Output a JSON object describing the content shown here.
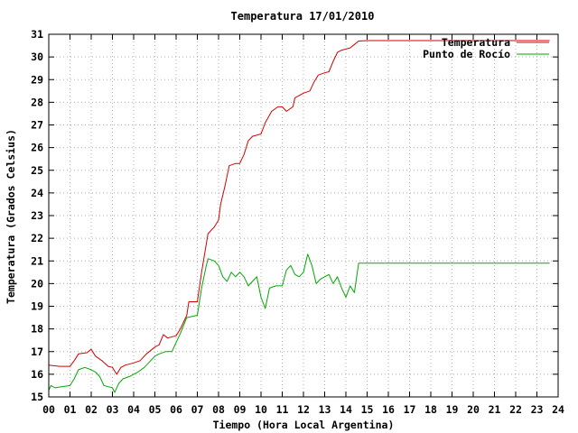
{
  "chart_data": {
    "type": "line",
    "title": "Temperatura 17/01/2010",
    "xlabel": "Tiempo (Hora Local Argentina)",
    "ylabel": "Temperatura (Grados Celsius)",
    "xlim": [
      0,
      24
    ],
    "ylim": [
      15,
      31
    ],
    "x_ticks": [
      "00",
      "01",
      "02",
      "03",
      "04",
      "05",
      "06",
      "07",
      "08",
      "09",
      "10",
      "11",
      "12",
      "13",
      "14",
      "15",
      "16",
      "17",
      "18",
      "19",
      "20",
      "21",
      "22",
      "23",
      "24"
    ],
    "y_ticks": [
      "15",
      "16",
      "17",
      "18",
      "19",
      "20",
      "21",
      "22",
      "23",
      "24",
      "25",
      "26",
      "27",
      "28",
      "29",
      "30",
      "31"
    ],
    "grid": true,
    "legend_position": "top-right",
    "series": [
      {
        "name": "Temperatura",
        "color": "#d40000",
        "points": [
          [
            0.0,
            16.4
          ],
          [
            0.5,
            16.35
          ],
          [
            1.0,
            16.35
          ],
          [
            1.2,
            16.6
          ],
          [
            1.4,
            16.9
          ],
          [
            1.8,
            16.95
          ],
          [
            2.0,
            17.1
          ],
          [
            2.2,
            16.8
          ],
          [
            2.5,
            16.6
          ],
          [
            2.8,
            16.35
          ],
          [
            3.0,
            16.3
          ],
          [
            3.2,
            16.0
          ],
          [
            3.4,
            16.3
          ],
          [
            3.6,
            16.4
          ],
          [
            4.0,
            16.5
          ],
          [
            4.3,
            16.6
          ],
          [
            4.6,
            16.9
          ],
          [
            5.0,
            17.2
          ],
          [
            5.2,
            17.3
          ],
          [
            5.4,
            17.75
          ],
          [
            5.6,
            17.6
          ],
          [
            6.0,
            17.7
          ],
          [
            6.2,
            18.0
          ],
          [
            6.5,
            18.6
          ],
          [
            6.6,
            19.2
          ],
          [
            7.0,
            19.2
          ],
          [
            7.2,
            20.5
          ],
          [
            7.5,
            22.2
          ],
          [
            7.8,
            22.5
          ],
          [
            8.0,
            22.8
          ],
          [
            8.1,
            23.5
          ],
          [
            8.3,
            24.3
          ],
          [
            8.5,
            25.2
          ],
          [
            8.8,
            25.3
          ],
          [
            9.0,
            25.3
          ],
          [
            9.2,
            25.7
          ],
          [
            9.4,
            26.3
          ],
          [
            9.6,
            26.5
          ],
          [
            10.0,
            26.6
          ],
          [
            10.2,
            27.1
          ],
          [
            10.5,
            27.6
          ],
          [
            10.8,
            27.8
          ],
          [
            11.0,
            27.8
          ],
          [
            11.2,
            27.6
          ],
          [
            11.5,
            27.8
          ],
          [
            11.6,
            28.2
          ],
          [
            12.0,
            28.4
          ],
          [
            12.3,
            28.5
          ],
          [
            12.5,
            28.9
          ],
          [
            12.7,
            29.2
          ],
          [
            13.0,
            29.3
          ],
          [
            13.2,
            29.35
          ],
          [
            13.4,
            29.8
          ],
          [
            13.6,
            30.2
          ],
          [
            13.8,
            30.3
          ],
          [
            14.2,
            30.4
          ],
          [
            14.4,
            30.55
          ],
          [
            14.6,
            30.7
          ],
          [
            15.0,
            30.72
          ],
          [
            20.0,
            30.72
          ],
          [
            23.6,
            30.72
          ]
        ]
      },
      {
        "name": "Punto de Rocío",
        "color": "#00aa00",
        "points": [
          [
            0.0,
            15.3
          ],
          [
            0.1,
            15.5
          ],
          [
            0.3,
            15.4
          ],
          [
            0.6,
            15.45
          ],
          [
            1.0,
            15.5
          ],
          [
            1.2,
            15.8
          ],
          [
            1.4,
            16.2
          ],
          [
            1.7,
            16.3
          ],
          [
            2.0,
            16.2
          ],
          [
            2.2,
            16.1
          ],
          [
            2.4,
            15.9
          ],
          [
            2.6,
            15.5
          ],
          [
            2.8,
            15.45
          ],
          [
            3.0,
            15.4
          ],
          [
            3.1,
            15.2
          ],
          [
            3.3,
            15.6
          ],
          [
            3.5,
            15.8
          ],
          [
            3.8,
            15.9
          ],
          [
            4.2,
            16.1
          ],
          [
            4.5,
            16.3
          ],
          [
            4.8,
            16.6
          ],
          [
            5.0,
            16.8
          ],
          [
            5.2,
            16.9
          ],
          [
            5.5,
            17.0
          ],
          [
            5.8,
            17.0
          ],
          [
            6.0,
            17.4
          ],
          [
            6.2,
            17.8
          ],
          [
            6.5,
            18.5
          ],
          [
            7.0,
            18.6
          ],
          [
            7.2,
            19.8
          ],
          [
            7.4,
            20.7
          ],
          [
            7.5,
            21.1
          ],
          [
            7.8,
            21.0
          ],
          [
            8.0,
            20.8
          ],
          [
            8.2,
            20.3
          ],
          [
            8.4,
            20.1
          ],
          [
            8.6,
            20.5
          ],
          [
            8.8,
            20.3
          ],
          [
            9.0,
            20.5
          ],
          [
            9.2,
            20.3
          ],
          [
            9.4,
            19.9
          ],
          [
            9.6,
            20.1
          ],
          [
            9.8,
            20.3
          ],
          [
            10.0,
            19.4
          ],
          [
            10.2,
            18.9
          ],
          [
            10.4,
            19.8
          ],
          [
            10.7,
            19.9
          ],
          [
            11.0,
            19.9
          ],
          [
            11.2,
            20.6
          ],
          [
            11.4,
            20.8
          ],
          [
            11.6,
            20.4
          ],
          [
            11.8,
            20.3
          ],
          [
            12.0,
            20.5
          ],
          [
            12.2,
            21.3
          ],
          [
            12.4,
            20.8
          ],
          [
            12.6,
            20.0
          ],
          [
            12.8,
            20.2
          ],
          [
            13.0,
            20.3
          ],
          [
            13.2,
            20.4
          ],
          [
            13.4,
            20.0
          ],
          [
            13.6,
            20.3
          ],
          [
            13.8,
            19.8
          ],
          [
            14.0,
            19.4
          ],
          [
            14.2,
            19.9
          ],
          [
            14.4,
            19.6
          ],
          [
            14.6,
            20.9
          ],
          [
            15.0,
            20.9
          ],
          [
            20.0,
            20.9
          ],
          [
            23.6,
            20.9
          ]
        ]
      }
    ]
  }
}
